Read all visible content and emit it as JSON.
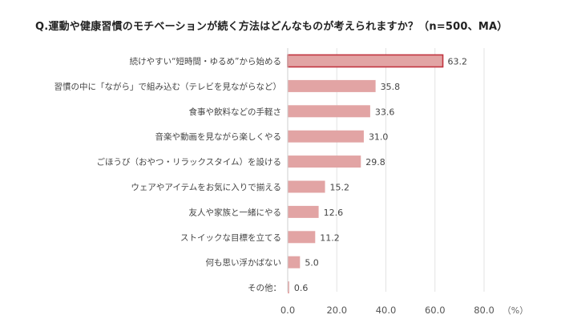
{
  "chart_data": {
    "type": "bar",
    "orientation": "horizontal",
    "title": "Q.運動や健康習慣のモチベーションが続く方法はどんなものが考えられますか？（n=500、MA）",
    "categories": [
      "続けやすい“短時間・ゆるめ”から始める",
      "習慣の中に「ながら」で組み込む（テレビを見ながらなど）",
      "食事や飲料などの手軽さ",
      "音楽や動画を見ながら楽しくやる",
      "ごほうび（おやつ・リラックスタイム）を設ける",
      "ウェアやアイテムをお気に入りで揃える",
      "友人や家族と一緒にやる",
      "ストイックな目標を立てる",
      "何も思い浮かばない",
      "その他："
    ],
    "values": [
      63.2,
      35.8,
      33.6,
      31.0,
      29.8,
      15.2,
      12.6,
      11.2,
      5.0,
      0.6
    ],
    "value_labels": [
      "63.2",
      "35.8",
      "33.6",
      "31.0",
      "29.8",
      "15.2",
      "12.6",
      "11.2",
      "5.0",
      "0.6"
    ],
    "xlim": [
      0,
      80
    ],
    "x_ticks": [
      0,
      20,
      40,
      60,
      80
    ],
    "x_tick_labels": [
      "0.0",
      "20.0",
      "40.0",
      "60.0",
      "80.0"
    ],
    "unit": "（%）",
    "grid": true,
    "colors": {
      "bar": "#e2a4a4",
      "highlight_bar": "#e2a4a4",
      "highlight_border": "#c0343f",
      "grid": "#e3e3e3"
    },
    "highlight_index": 0
  }
}
